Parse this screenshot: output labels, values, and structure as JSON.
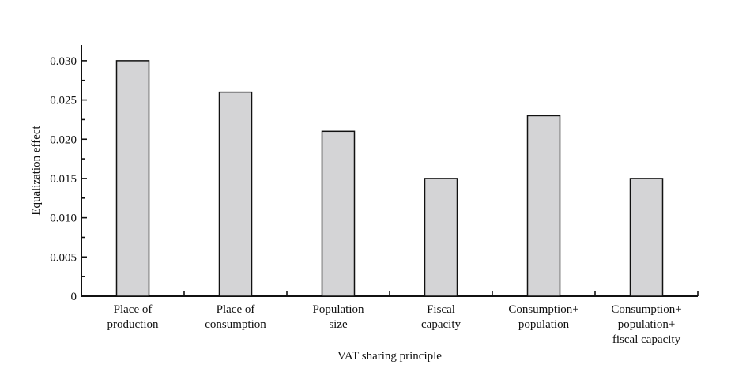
{
  "chart_data": {
    "type": "bar",
    "categories": [
      [
        "Place of",
        "production"
      ],
      [
        "Place of",
        "consumption"
      ],
      [
        "Population",
        "size"
      ],
      [
        "Fiscal",
        "capacity"
      ],
      [
        "Consumption+",
        "population"
      ],
      [
        "Consumption+",
        "population+",
        "fiscal capacity"
      ]
    ],
    "values": [
      0.03,
      0.026,
      0.021,
      0.015,
      0.023,
      0.015
    ],
    "xlabel": "VAT sharing principle",
    "ylabel": "Equalization effect",
    "ylim": [
      0,
      0.032
    ],
    "yticks": [
      "0",
      "0.005",
      "0.010",
      "0.015",
      "0.020",
      "0.025",
      "0.030"
    ],
    "grid": false,
    "bar_color": "#d4d4d6",
    "edge_color": "#111111"
  }
}
